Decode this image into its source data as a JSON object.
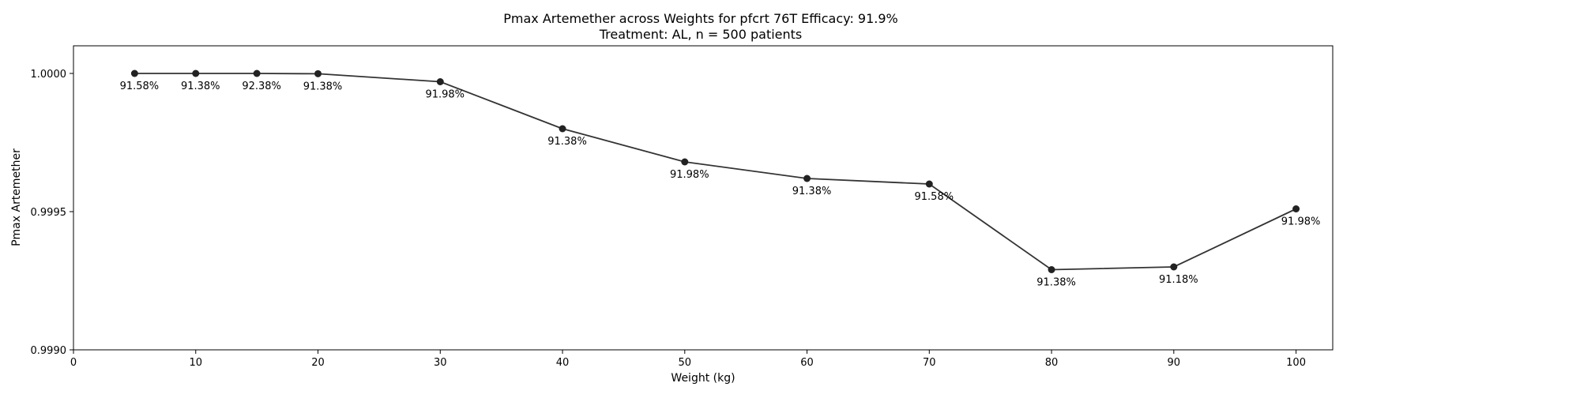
{
  "chart_data": {
    "type": "line",
    "title": "Pmax Artemether across Weights for pfcrt 76T Efficacy: 91.9%",
    "subtitle": "Treatment: AL, n = 500 patients",
    "xlabel": "Weight (kg)",
    "ylabel": "Pmax Artemether",
    "xlim": [
      0,
      103
    ],
    "ylim": [
      0.999,
      1.0001
    ],
    "x_ticks": [
      0,
      10,
      20,
      30,
      40,
      50,
      60,
      70,
      80,
      90,
      100
    ],
    "y_ticks": [
      0.999,
      0.9995,
      1.0
    ],
    "y_tick_labels": [
      "0.9990",
      "0.9995",
      "1.0000"
    ],
    "grid": false,
    "series": [
      {
        "x": [
          5,
          10,
          15,
          20,
          30,
          40,
          50,
          60,
          70,
          80,
          90,
          100
        ],
        "y": [
          1.0,
          1.0,
          1.0,
          0.999999,
          0.99997,
          0.9998,
          0.99968,
          0.99962,
          0.9996,
          0.99929,
          0.9993,
          0.99951
        ],
        "labels": [
          "91.58%",
          "91.38%",
          "92.38%",
          "91.38%",
          "91.98%",
          "91.38%",
          "91.98%",
          "91.38%",
          "91.58%",
          "91.38%",
          "91.18%",
          "91.98%"
        ]
      }
    ],
    "colors": {
      "line": "#333333",
      "marker": "#222222",
      "axes": "#000000"
    }
  }
}
